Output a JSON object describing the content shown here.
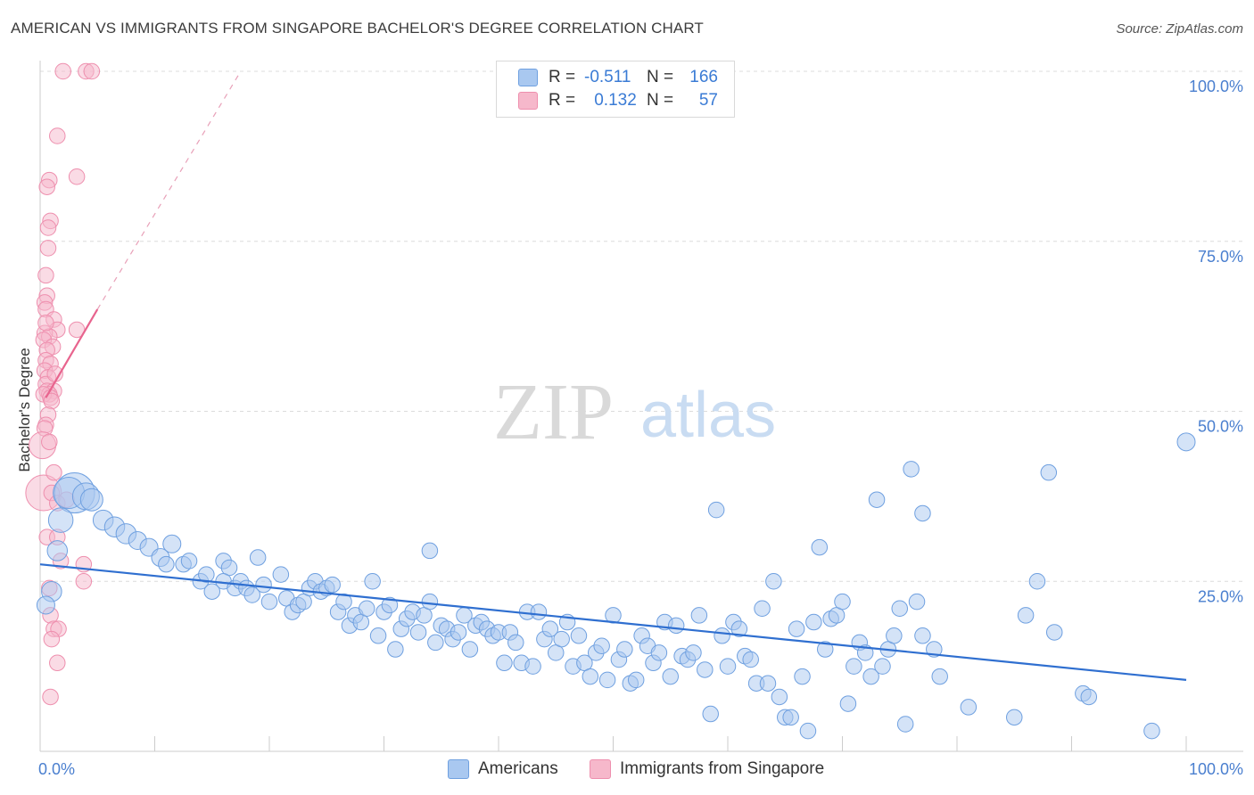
{
  "chart_data": {
    "type": "scatter",
    "title": "AMERICAN VS IMMIGRANTS FROM SINGAPORE BACHELOR'S DEGREE CORRELATION CHART",
    "source": "Source: ZipAtlas.com",
    "ylabel": "Bachelor's Degree",
    "xlim": [
      0,
      100
    ],
    "ylim": [
      0,
      100
    ],
    "x_tick_labels": [
      {
        "value": 0,
        "label": "0.0%"
      },
      {
        "value": 100,
        "label": "100.0%"
      }
    ],
    "y_tick_labels": [
      {
        "value": 25,
        "label": "25.0%"
      },
      {
        "value": 50,
        "label": "50.0%"
      },
      {
        "value": 75,
        "label": "75.0%"
      },
      {
        "value": 100,
        "label": "100.0%"
      }
    ],
    "watermark": {
      "part1": "ZIP",
      "part2": "atlas"
    },
    "stats": [
      {
        "r_label": "R =",
        "r_value": "-0.511",
        "n_label": "N =",
        "n_value": "166",
        "color": "#a9c8f0"
      },
      {
        "r_label": "R =",
        "r_value": "0.132",
        "n_label": "N =",
        "n_value": "57",
        "color": "#f6b8cb"
      }
    ],
    "series": [
      {
        "name": "Americans",
        "color": "#a9c8f0",
        "stroke": "#6fa0e0",
        "trend": {
          "x0": 0,
          "y0": 27.5,
          "x1": 100,
          "y1": 10.5,
          "color": "#2f6fd0"
        },
        "points": [
          [
            3,
            38,
            18
          ],
          [
            2.5,
            38,
            14
          ],
          [
            4,
            37.5,
            12
          ],
          [
            4.5,
            37,
            10
          ],
          [
            1.8,
            34,
            11
          ],
          [
            5.5,
            34,
            9
          ],
          [
            6.5,
            33,
            9
          ],
          [
            7.5,
            32,
            9
          ],
          [
            8.5,
            31,
            8
          ],
          [
            9.5,
            30,
            8
          ],
          [
            10.5,
            28.5,
            8
          ],
          [
            11,
            27.5,
            7
          ],
          [
            11.5,
            30.5,
            8
          ],
          [
            12.5,
            27.5,
            7
          ],
          [
            13,
            28,
            7
          ],
          [
            14,
            25,
            7
          ],
          [
            14.5,
            26,
            7
          ],
          [
            15,
            23.5,
            7
          ],
          [
            16,
            28,
            7
          ],
          [
            16.5,
            27,
            7
          ],
          [
            16,
            25,
            7
          ],
          [
            17,
            24,
            7
          ],
          [
            17.5,
            25,
            7
          ],
          [
            18,
            24,
            7
          ],
          [
            18.5,
            23,
            7
          ],
          [
            19,
            28.5,
            7
          ],
          [
            19.5,
            24.5,
            7
          ],
          [
            20,
            22,
            7
          ],
          [
            21,
            26,
            7
          ],
          [
            21.5,
            22.5,
            7
          ],
          [
            22,
            20.5,
            7
          ],
          [
            22.5,
            21.5,
            7
          ],
          [
            23,
            22,
            7
          ],
          [
            23.5,
            24,
            7
          ],
          [
            24,
            25,
            7
          ],
          [
            24.5,
            23.5,
            7
          ],
          [
            25,
            24,
            7
          ],
          [
            25.5,
            24.5,
            7
          ],
          [
            26,
            20.5,
            7
          ],
          [
            26.5,
            22,
            7
          ],
          [
            27,
            18.5,
            7
          ],
          [
            27.5,
            20,
            7
          ],
          [
            28,
            19,
            7
          ],
          [
            28.5,
            21,
            7
          ],
          [
            29,
            25,
            7
          ],
          [
            29.5,
            17,
            7
          ],
          [
            30,
            20.5,
            7
          ],
          [
            30.5,
            21.5,
            7
          ],
          [
            31,
            15,
            7
          ],
          [
            31.5,
            18,
            7
          ],
          [
            32,
            19.5,
            7
          ],
          [
            32.5,
            20.5,
            7
          ],
          [
            33,
            17.5,
            7
          ],
          [
            33.5,
            20,
            7
          ],
          [
            34,
            22,
            7
          ],
          [
            34,
            29.5,
            7
          ],
          [
            34.5,
            16,
            7
          ],
          [
            35,
            18.5,
            7
          ],
          [
            35.5,
            18,
            7
          ],
          [
            36,
            16.5,
            7
          ],
          [
            36.5,
            17.5,
            7
          ],
          [
            37,
            20,
            7
          ],
          [
            37.5,
            15,
            7
          ],
          [
            38,
            18.5,
            7
          ],
          [
            38.5,
            19,
            7
          ],
          [
            39,
            18,
            7
          ],
          [
            39.5,
            17,
            7
          ],
          [
            40,
            17.5,
            7
          ],
          [
            40.5,
            13,
            7
          ],
          [
            41,
            17.5,
            7
          ],
          [
            41.5,
            16,
            7
          ],
          [
            42,
            13,
            7
          ],
          [
            42.5,
            20.5,
            7
          ],
          [
            43,
            12.5,
            7
          ],
          [
            43.5,
            20.5,
            7
          ],
          [
            44,
            16.5,
            7
          ],
          [
            44.5,
            18,
            7
          ],
          [
            45,
            14.5,
            7
          ],
          [
            45.5,
            16.5,
            7
          ],
          [
            46,
            19,
            7
          ],
          [
            46.5,
            12.5,
            7
          ],
          [
            47,
            17,
            7
          ],
          [
            47.5,
            13,
            7
          ],
          [
            48,
            11,
            7
          ],
          [
            48.5,
            14.5,
            7
          ],
          [
            49,
            15.5,
            7
          ],
          [
            49.5,
            10.5,
            7
          ],
          [
            50,
            20,
            7
          ],
          [
            50.5,
            13.5,
            7
          ],
          [
            51,
            15,
            7
          ],
          [
            51.5,
            10,
            7
          ],
          [
            52,
            10.5,
            7
          ],
          [
            52.5,
            17,
            7
          ],
          [
            53,
            15.5,
            7
          ],
          [
            53.5,
            13,
            7
          ],
          [
            54,
            14.5,
            7
          ],
          [
            54.5,
            19,
            7
          ],
          [
            55,
            11,
            7
          ],
          [
            55.5,
            18.5,
            7
          ],
          [
            56,
            14,
            7
          ],
          [
            56.5,
            13.5,
            7
          ],
          [
            57,
            14.5,
            7
          ],
          [
            57.5,
            20,
            7
          ],
          [
            58,
            12,
            7
          ],
          [
            58.5,
            5.5,
            7
          ],
          [
            59,
            35.5,
            7
          ],
          [
            59.5,
            17,
            7
          ],
          [
            60,
            12.5,
            7
          ],
          [
            60.5,
            19,
            7
          ],
          [
            61,
            18,
            7
          ],
          [
            61.5,
            14,
            7
          ],
          [
            62,
            13.5,
            7
          ],
          [
            62.5,
            10,
            7
          ],
          [
            63,
            21,
            7
          ],
          [
            63.5,
            10,
            7
          ],
          [
            64,
            25,
            7
          ],
          [
            64.5,
            8,
            7
          ],
          [
            65,
            5,
            7
          ],
          [
            65.5,
            5,
            7
          ],
          [
            66,
            18,
            7
          ],
          [
            66.5,
            11,
            7
          ],
          [
            67,
            3,
            7
          ],
          [
            67.5,
            19,
            7
          ],
          [
            68,
            30,
            7
          ],
          [
            68.5,
            15,
            7
          ],
          [
            69,
            19.5,
            7
          ],
          [
            69.5,
            20,
            7
          ],
          [
            70,
            22,
            7
          ],
          [
            70.5,
            7,
            7
          ],
          [
            71,
            12.5,
            7
          ],
          [
            71.5,
            16,
            7
          ],
          [
            72,
            14.5,
            7
          ],
          [
            72.5,
            11,
            7
          ],
          [
            73,
            37,
            7
          ],
          [
            73.5,
            12.5,
            7
          ],
          [
            74,
            15,
            7
          ],
          [
            74.5,
            17,
            7
          ],
          [
            75,
            21,
            7
          ],
          [
            75.5,
            4,
            7
          ],
          [
            76,
            41.5,
            7
          ],
          [
            76.5,
            22,
            7
          ],
          [
            77,
            17,
            7
          ],
          [
            77,
            35,
            7
          ],
          [
            78,
            15,
            7
          ],
          [
            78.5,
            11,
            7
          ],
          [
            81,
            6.5,
            7
          ],
          [
            85,
            5,
            7
          ],
          [
            86,
            20,
            7
          ],
          [
            87,
            25,
            7
          ],
          [
            88,
            41,
            7
          ],
          [
            88.5,
            17.5,
            7
          ],
          [
            91,
            8.5,
            7
          ],
          [
            91.5,
            8,
            7
          ],
          [
            97,
            3,
            7
          ],
          [
            100,
            45.5,
            8
          ],
          [
            1,
            23.5,
            9
          ],
          [
            0.5,
            21.5,
            8
          ],
          [
            1.5,
            29.5,
            9
          ]
        ]
      },
      {
        "name": "Immigrants from Singapore",
        "color": "#f6b8cb",
        "stroke": "#ee8fae",
        "trend": {
          "x0": 0.5,
          "y0": 52,
          "x1": 5,
          "y1": 65,
          "color": "#e8648e"
        },
        "trend_dashed": {
          "x0": 5,
          "y0": 65,
          "x1": 17.5,
          "y1": 100,
          "color": "#e8a0b8"
        },
        "points": [
          [
            2,
            100,
            7
          ],
          [
            4,
            100,
            7
          ],
          [
            4.5,
            100,
            7
          ],
          [
            1.5,
            90.5,
            7
          ],
          [
            3.2,
            84.5,
            7
          ],
          [
            0.8,
            84,
            7
          ],
          [
            0.6,
            83,
            7
          ],
          [
            0.9,
            78,
            7
          ],
          [
            0.7,
            77,
            7
          ],
          [
            0.5,
            70,
            7
          ],
          [
            0.6,
            67,
            7
          ],
          [
            0.4,
            66,
            7
          ],
          [
            0.5,
            65,
            7
          ],
          [
            1.2,
            63.5,
            7
          ],
          [
            3.2,
            62,
            7
          ],
          [
            1.5,
            62,
            7
          ],
          [
            0.4,
            61.5,
            7
          ],
          [
            0.8,
            61,
            7
          ],
          [
            0.3,
            60.5,
            7
          ],
          [
            1.1,
            59.5,
            7
          ],
          [
            0.6,
            59,
            7
          ],
          [
            0.5,
            57.5,
            7
          ],
          [
            0.9,
            57,
            7
          ],
          [
            0.4,
            56,
            7
          ],
          [
            0.7,
            55,
            7
          ],
          [
            0.5,
            54,
            7
          ],
          [
            0.6,
            53,
            7
          ],
          [
            1.2,
            53,
            7
          ],
          [
            0.8,
            52.5,
            7
          ],
          [
            0.3,
            52.5,
            7
          ],
          [
            0.9,
            52,
            7
          ],
          [
            1.0,
            51.5,
            7
          ],
          [
            0.7,
            49.5,
            7
          ],
          [
            0.5,
            48,
            7
          ],
          [
            0.4,
            47.5,
            7
          ],
          [
            0.2,
            45,
            12
          ],
          [
            0.3,
            38,
            16
          ],
          [
            1.2,
            41,
            7
          ],
          [
            1.0,
            38,
            7
          ],
          [
            1.5,
            36.5,
            7
          ],
          [
            0.6,
            31.5,
            7
          ],
          [
            1.5,
            31.5,
            7
          ],
          [
            1.8,
            28,
            7
          ],
          [
            3.8,
            27.5,
            7
          ],
          [
            0.8,
            24,
            7
          ],
          [
            3.8,
            25,
            7
          ],
          [
            0.9,
            20,
            7
          ],
          [
            1.2,
            18,
            7
          ],
          [
            1.6,
            18,
            7
          ],
          [
            1.0,
            16.5,
            7
          ],
          [
            1.5,
            13,
            7
          ],
          [
            0.9,
            8,
            7
          ],
          [
            2.3,
            37,
            7
          ],
          [
            0.8,
            45.5,
            7
          ],
          [
            1.3,
            55.5,
            7
          ],
          [
            0.5,
            63,
            7
          ],
          [
            0.7,
            74,
            7
          ]
        ]
      }
    ]
  }
}
